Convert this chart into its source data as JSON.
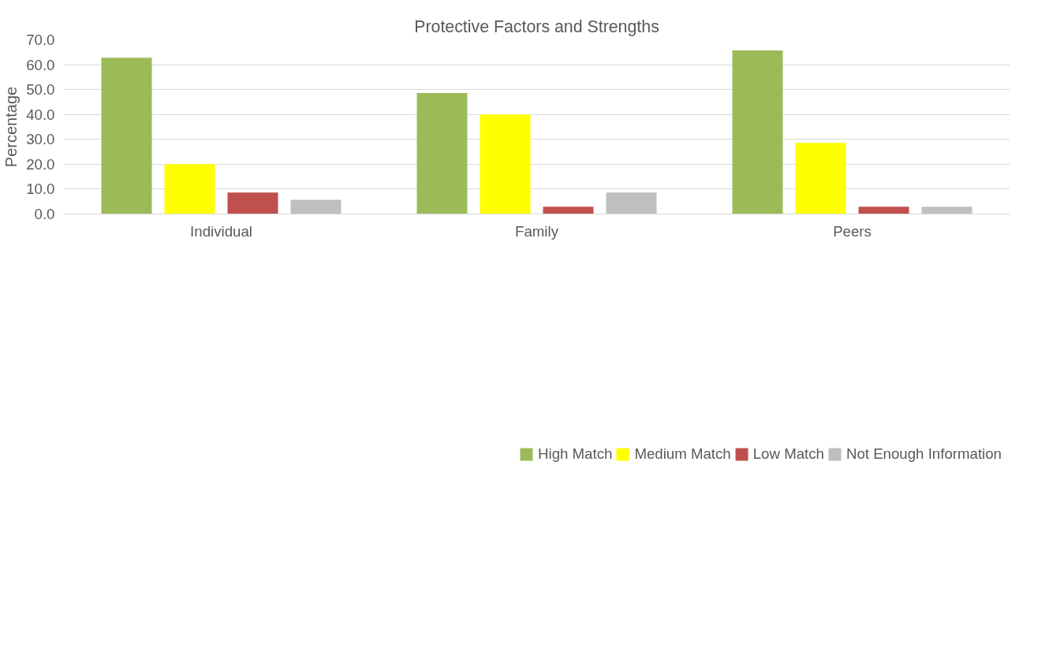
{
  "chart_data": {
    "type": "bar",
    "title": "Protective Factors and Strengths",
    "ylabel": "Percentage",
    "categories": [
      "Individual",
      "Family",
      "Peers"
    ],
    "series": [
      {
        "name": "High Match",
        "color": "#9bbb59",
        "values": [
          62.8,
          48.6,
          65.7
        ]
      },
      {
        "name": "Medium Match",
        "color": "#ffff00",
        "values": [
          20.0,
          40.0,
          28.6
        ]
      },
      {
        "name": "Low Match",
        "color": "#c0504d",
        "values": [
          8.6,
          2.9,
          2.9
        ]
      },
      {
        "name": "Not Enough Information",
        "color": "#bfbfbf",
        "values": [
          5.7,
          8.6,
          2.9
        ]
      }
    ],
    "ylim": [
      0,
      70
    ],
    "yticks": [
      {
        "value": 0,
        "label": "0.0"
      },
      {
        "value": 10,
        "label": "10.0"
      },
      {
        "value": 20,
        "label": "20.0"
      },
      {
        "value": 30,
        "label": "30.0"
      },
      {
        "value": 40,
        "label": "40.0"
      },
      {
        "value": 50,
        "label": "50.0"
      },
      {
        "value": 60,
        "label": "60.0"
      },
      {
        "value": 70,
        "label": "70.0"
      }
    ],
    "grid": "y",
    "legend": "bottom"
  }
}
